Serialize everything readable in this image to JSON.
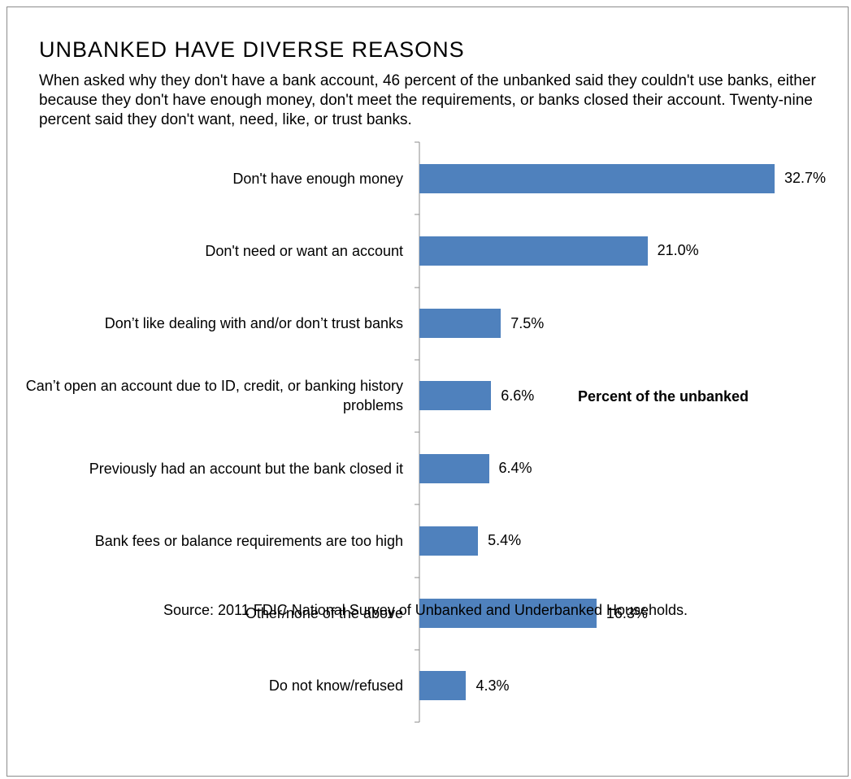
{
  "title": "UNBANKED HAVE DIVERSE REASONS",
  "subtitle": "When asked why they don't have a bank account, 46 percent of the unbanked said they couldn't use banks, either because they don't have enough money, don't meet the requirements, or banks closed their account. Twenty-nine percent said they don't want, need, like, or trust banks.",
  "axis_note": "Percent of the unbanked",
  "source": "Source: 2011 FDIC National Survey of Unbanked and Underbanked Households.",
  "colors": {
    "bar": "#4f81bd",
    "frame": "#8c8c8c"
  },
  "chart_data": {
    "type": "bar",
    "orientation": "horizontal",
    "categories": [
      "Don't have enough money",
      "Don't need or want an account",
      "Don’t like dealing with and/or don’t trust banks",
      "Can’t open an account due to ID, credit, or banking history problems",
      "Previously had an account but the bank closed it",
      "Bank fees or balance requirements are too high",
      "Other/none of the above",
      "Do not know/refused"
    ],
    "values": [
      32.7,
      21.0,
      7.5,
      6.6,
      6.4,
      5.4,
      16.3,
      4.3
    ],
    "value_labels": [
      "32.7%",
      "21.0%",
      "7.5%",
      "6.6%",
      "6.4%",
      "5.4%",
      "16.3%",
      "4.3%"
    ],
    "xlabel": "Percent of the unbanked",
    "xlim": [
      0,
      33
    ],
    "grid": false
  }
}
